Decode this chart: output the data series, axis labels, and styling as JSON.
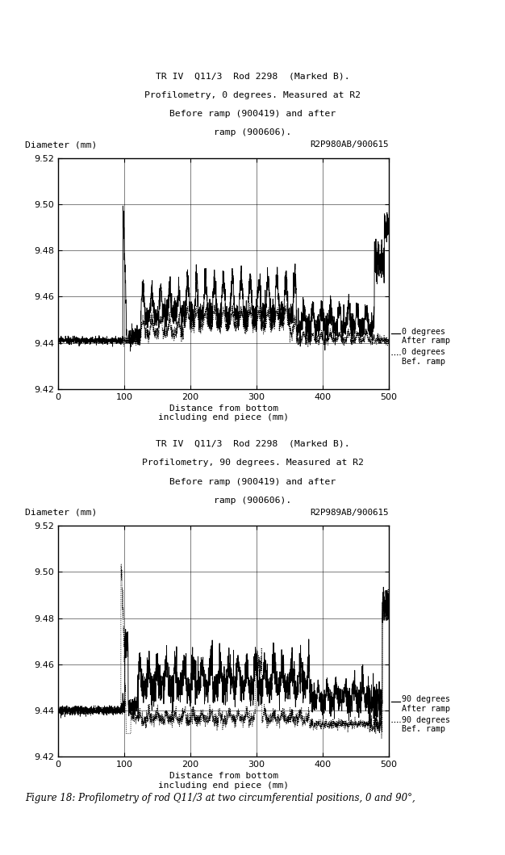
{
  "title1_line1": "TR IV  Q11/3  Rod 2298  (Marked B).",
  "title1_line2": "Profilometry, 0 degrees. Measured at R2",
  "title1_line3": "Before ramp (900419) and after",
  "title1_line4": "ramp (900606).",
  "ref1": "R2P980AB/900615",
  "title2_line1": "TR IV  Q11/3  Rod 2298  (Marked B).",
  "title2_line2": "Profilometry, 90 degrees. Measured at R2",
  "title2_line3": "Before ramp (900419) and after",
  "title2_line4": "ramp (900606).",
  "ref2": "R2P989AB/900615",
  "xlabel": "Distance from bottom\nincluding end piece (mm)",
  "ylabel": "Diameter (mm)",
  "xlim": [
    0,
    500
  ],
  "ylim": [
    9.42,
    9.52
  ],
  "yticks": [
    9.42,
    9.44,
    9.46,
    9.48,
    9.5,
    9.52
  ],
  "xticks": [
    0,
    100,
    200,
    300,
    400,
    500
  ],
  "legend1_solid": "0 degrees\nAfter ramp",
  "legend1_dot": "0 degrees\nBef. ramp",
  "legend2_solid": "90 degrees\nAfter ramp",
  "legend2_dot": "90 degrees\nBef. ramp",
  "caption": "Figure 18: Profilometry of rod Q11/3 at two circumferential positions, 0 and 90°,",
  "background_color": "#ffffff",
  "line_color": "#000000"
}
